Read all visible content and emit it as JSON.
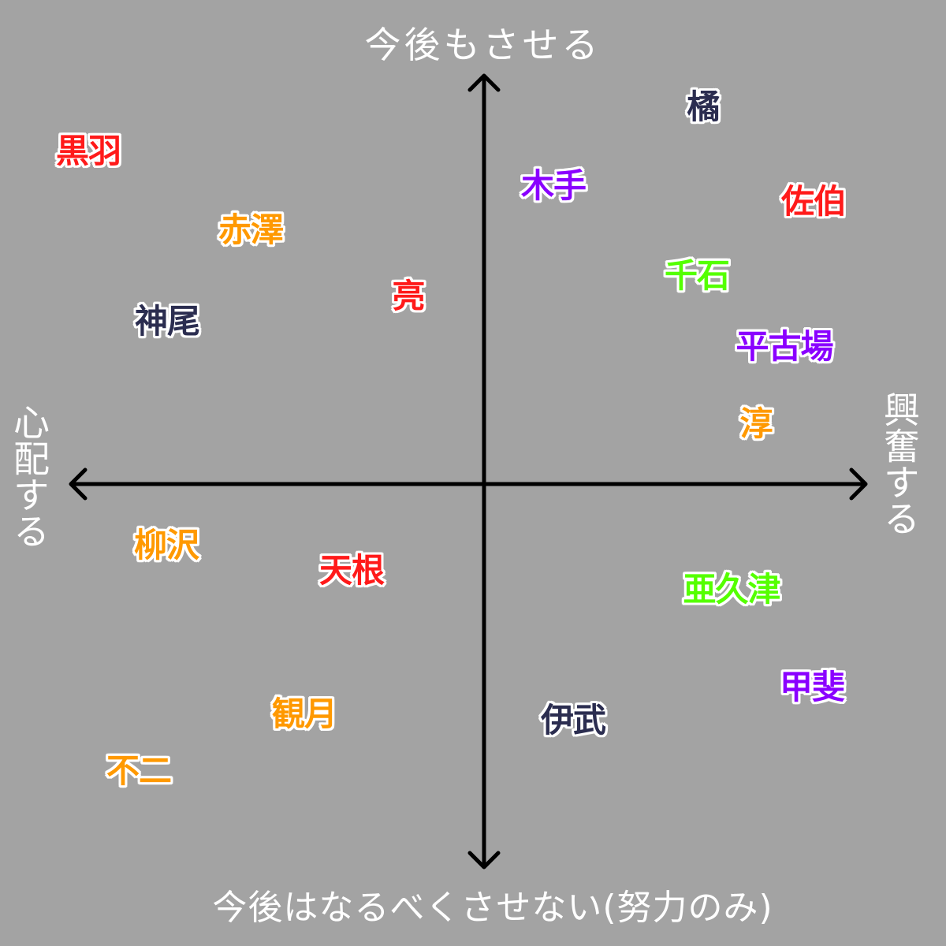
{
  "labels": {
    "top": "今後もさせる",
    "bottom": "今後はなるべくさせない(努力のみ)",
    "left": "心配する",
    "right": "興奮する"
  },
  "colors": {
    "background": "#a3a3a3",
    "axis": "#000000",
    "label_text": "#ffffff",
    "red": "#ff1a1a",
    "orange": "#ff9900",
    "navy": "#2b2d50",
    "purple": "#8a00ff",
    "green": "#55ff00"
  },
  "names": [
    {
      "text": "橘",
      "color": "#2b2d50"
    },
    {
      "text": "黒羽",
      "color": "#ff1a1a"
    },
    {
      "text": "木手",
      "color": "#8a00ff"
    },
    {
      "text": "佐伯",
      "color": "#ff1a1a"
    },
    {
      "text": "赤澤",
      "color": "#ff9900"
    },
    {
      "text": "千石",
      "color": "#55ff00"
    },
    {
      "text": "亮",
      "color": "#ff1a1a"
    },
    {
      "text": "神尾",
      "color": "#2b2d50"
    },
    {
      "text": "平古場",
      "color": "#8a00ff"
    },
    {
      "text": "淳",
      "color": "#ff9900"
    },
    {
      "text": "柳沢",
      "color": "#ff9900"
    },
    {
      "text": "天根",
      "color": "#ff1a1a"
    },
    {
      "text": "亜久津",
      "color": "#55ff00"
    },
    {
      "text": "甲斐",
      "color": "#8a00ff"
    },
    {
      "text": "観月",
      "color": "#ff9900"
    },
    {
      "text": "伊武",
      "color": "#2b2d50"
    },
    {
      "text": "不二",
      "color": "#ff9900"
    }
  ]
}
